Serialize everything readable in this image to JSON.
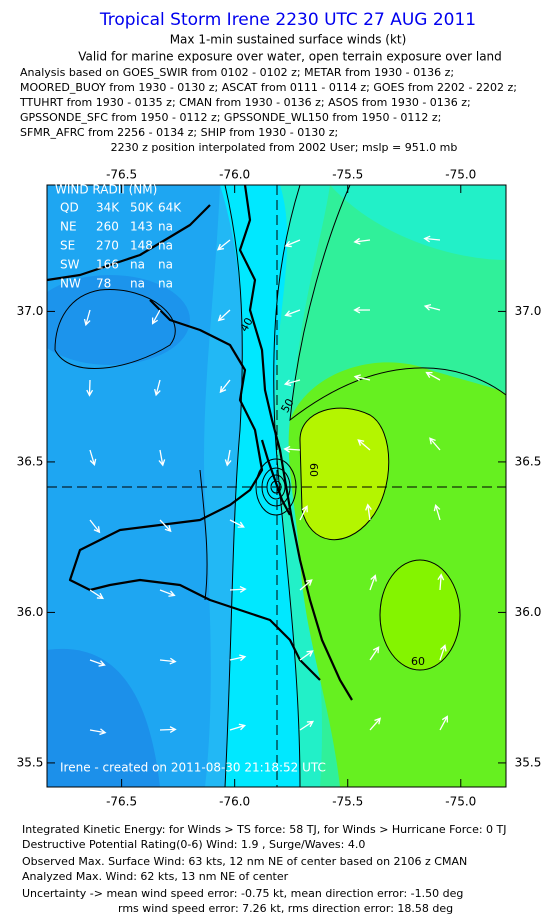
{
  "header": {
    "title": "Tropical Storm Irene 2230 UTC 27 AUG 2011",
    "subtitle": "Max 1-min sustained surface winds (kt)",
    "validity": "Valid for marine exposure over water, open terrain exposure over land",
    "analysis_lines": [
      "Analysis based on GOES_SWIR from 0102 - 0102 z; METAR from 1930 - 0136 z;",
      "MOORED_BUOY from 1930 - 0130 z; ASCAT from 0111 - 0114 z; GOES from 2202 - 2202 z;",
      "TTUHRT from 1930 - 0135 z; CMAN from 1930 - 0136 z; ASOS from 1930 - 0136 z;",
      "GPSSONDE_SFC from 1950 - 0112 z; GPSSONDE_WL150 from 1950 - 0112 z;",
      "SFMR_AFRC from 2256 - 0134 z; SHIP from 1930 - 0130 z;"
    ],
    "position_note": "2230 z position interpolated from 2002 User; mslp = 951.0 mb"
  },
  "map": {
    "xlim": [
      -76.83,
      -74.8
    ],
    "ylim": [
      35.42,
      37.42
    ],
    "xticks": [
      -76.5,
      {
        "value": -76,
        "label": "-76.0"
      },
      -75.5,
      {
        "value": -75,
        "label": "-75.0"
      }
    ],
    "yticks": [
      35.5,
      {
        "value": 36,
        "label": "36.0"
      },
      36.5,
      {
        "value": 37,
        "label": "37.0"
      }
    ],
    "contour_labels": [
      "40",
      "50",
      "60",
      "60"
    ],
    "wind_radii": {
      "title": "WIND RADII (NM)",
      "rows": [
        [
          "QD",
          "34K",
          "50K",
          "64K"
        ],
        [
          "NE",
          "260",
          "143",
          "na"
        ],
        [
          "SE",
          "270",
          "148",
          "na"
        ],
        [
          "SW",
          "166",
          "na",
          "na"
        ],
        [
          "NW",
          "78",
          "na",
          "na"
        ]
      ]
    },
    "credit": "Irene - created on 2011-08-30 21:18:52 UTC"
  },
  "footer": {
    "lines": [
      "Integrated Kinetic Energy:  for Winds > TS force: 58 TJ,  for Winds > Hurricane Force: 0 TJ",
      "Destructive Potential Rating(0-6)  Wind: 1.9 , Surge/Waves: 4.0",
      "Observed Max. Surface Wind: 63 kts, 12 nm NE of center based on 2106 z CMAN",
      "Analyzed Max. Wind: 62 kts, 13 nm NE of center",
      "Uncertainty -> mean wind speed error:  -0.75 kt,   mean direction error:  -1.50 deg",
      "rms wind speed error: 7.26 kt,   rms direction error: 18.58 deg"
    ]
  }
}
